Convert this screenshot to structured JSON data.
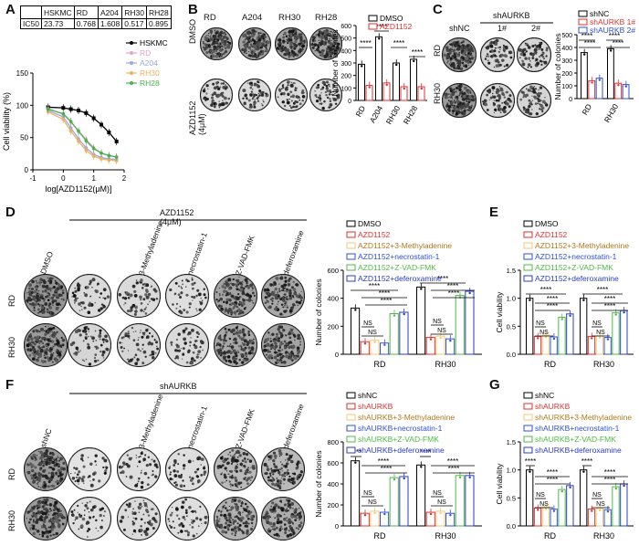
{
  "panels": [
    "A",
    "B",
    "C",
    "D",
    "E",
    "F",
    "G"
  ],
  "colors": {
    "hskmc": "#000000",
    "rd": "#e8a0c8",
    "a204": "#9aa8e0",
    "rh30": "#f0b060",
    "rh28": "#4caf50",
    "ctrl": "#000000",
    "red": "#e03030",
    "beige": "#f2c870",
    "blue": "#3050d8",
    "green": "#50b848",
    "indigo": "#2a3cc8"
  },
  "panelA": {
    "table": {
      "headers": [
        "",
        "HSKMC",
        "RD",
        "A204",
        "RH30",
        "RH28"
      ],
      "row_label": "IC50",
      "values": [
        "23.73",
        "0.768",
        "1.608",
        "0.517",
        "0.895"
      ]
    },
    "chart_data": {
      "type": "line",
      "xlabel": "log[AZD1152(μM)]",
      "ylabel": "Cell viability (%)",
      "xlim": [
        -1,
        2
      ],
      "ylim": [
        0,
        150
      ],
      "xticks": [
        "-1",
        "0",
        "1",
        "2"
      ],
      "yticks": [
        "0",
        "50",
        "100",
        "150"
      ],
      "series": [
        {
          "name": "HSKMC",
          "x": [
            -0.5,
            0,
            0.25,
            0.5,
            0.75,
            1,
            1.25,
            1.5,
            1.75
          ],
          "y": [
            97,
            96,
            94,
            92,
            88,
            80,
            70,
            58,
            44
          ]
        },
        {
          "name": "RD",
          "x": [
            -0.5,
            0,
            0.25,
            0.5,
            0.75,
            1,
            1.25,
            1.5,
            1.75
          ],
          "y": [
            95,
            86,
            74,
            60,
            47,
            34,
            26,
            22,
            20
          ]
        },
        {
          "name": "A204",
          "x": [
            -0.5,
            0,
            0.25,
            0.5,
            0.75,
            1,
            1.25,
            1.5,
            1.75
          ],
          "y": [
            92,
            82,
            65,
            48,
            34,
            24,
            19,
            17,
            16
          ]
        },
        {
          "name": "RH30",
          "x": [
            -0.5,
            0,
            0.25,
            0.5,
            0.75,
            1,
            1.25,
            1.5,
            1.75
          ],
          "y": [
            90,
            78,
            60,
            44,
            30,
            21,
            17,
            15,
            14
          ]
        },
        {
          "name": "RH28",
          "x": [
            -0.5,
            0,
            0.25,
            0.5,
            0.75,
            1,
            1.25,
            1.5,
            1.75
          ],
          "y": [
            94,
            87,
            75,
            60,
            45,
            33,
            26,
            22,
            20
          ]
        }
      ]
    }
  },
  "panelB": {
    "col_labels": [
      "RD",
      "A204",
      "RH30",
      "RH28"
    ],
    "row_labels": [
      "DMSO",
      "AZD1152 (4μM)"
    ],
    "chart_data": {
      "type": "bar",
      "ylabel": "Number of colonies",
      "yticks": [
        "0",
        "100",
        "200",
        "300",
        "400",
        "500",
        "600"
      ],
      "ylim": [
        0,
        600
      ],
      "categories": [
        "RD",
        "A204",
        "RH30",
        "RH28"
      ],
      "series": [
        {
          "name": "DMSO",
          "values": [
            290,
            510,
            300,
            330
          ]
        },
        {
          "name": "AZD1152",
          "values": [
            120,
            140,
            110,
            110
          ]
        }
      ],
      "significance": [
        "****",
        "****",
        "****",
        "****"
      ]
    }
  },
  "panelC": {
    "col_labels": [
      "shNC",
      "1#",
      "2#"
    ],
    "group_label": "shAURKB",
    "row_labels": [
      "RD",
      "RH30"
    ],
    "chart_data": {
      "type": "bar",
      "ylabel": "Number of colonies",
      "yticks": [
        "0",
        "100",
        "200",
        "300",
        "400",
        "500"
      ],
      "ylim": [
        0,
        500
      ],
      "categories": [
        "RD",
        "RH30"
      ],
      "series": [
        {
          "name": "shNC",
          "values": [
            360,
            390
          ]
        },
        {
          "name": "shAURKB 1#",
          "values": [
            140,
            120
          ]
        },
        {
          "name": "shAURKB 2#",
          "values": [
            160,
            110
          ]
        }
      ],
      "significance": [
        "****",
        "****",
        "****",
        "****"
      ]
    }
  },
  "panelD": {
    "group_label": "AZD1152 (4μM)",
    "col_labels": [
      "DMSO",
      "-",
      "+3-Methyladenine",
      "+necrostatin-1",
      "+Z-VAD-FMK",
      "+deferoxamine"
    ],
    "row_labels": [
      "RD",
      "RH30"
    ],
    "chart_data": {
      "type": "bar",
      "ylabel": "Number of colonies",
      "yticks": [
        "0",
        "200",
        "400",
        "600"
      ],
      "ylim": [
        0,
        600
      ],
      "categories": [
        "RD",
        "RH30"
      ],
      "series": [
        {
          "name": "DMSO",
          "values": [
            330,
            480
          ]
        },
        {
          "name": "AZD1152",
          "values": [
            90,
            120
          ]
        },
        {
          "name": "AZD1152+3-Methyladenine",
          "values": [
            100,
            130
          ]
        },
        {
          "name": "AZD1152+necrostatin-1",
          "values": [
            80,
            110
          ]
        },
        {
          "name": "AZD1152+Z-VAD-FMK",
          "values": [
            290,
            420
          ]
        },
        {
          "name": "AZD1152+deferoxamine",
          "values": [
            300,
            450
          ]
        }
      ],
      "annotations": [
        "****",
        "****",
        "****",
        "NS",
        "NS",
        "****",
        "****",
        "****",
        "NS",
        "NS"
      ]
    }
  },
  "panelE": {
    "chart_data": {
      "type": "bar",
      "ylabel": "Cell viability",
      "yticks": [
        "0.0",
        "0.5",
        "1.0",
        "1.5"
      ],
      "ylim": [
        0,
        1.5
      ],
      "categories": [
        "RD",
        "RH30"
      ],
      "series": [
        {
          "name": "DMSO",
          "values": [
            1.0,
            1.0
          ]
        },
        {
          "name": "AZD1152",
          "values": [
            0.32,
            0.32
          ]
        },
        {
          "name": "AZD1152+3-Methyladenine",
          "values": [
            0.34,
            0.33
          ]
        },
        {
          "name": "AZD1152+necrostatin-1",
          "values": [
            0.31,
            0.3
          ]
        },
        {
          "name": "AZD1152+Z-VAD-FMK",
          "values": [
            0.66,
            0.74
          ]
        },
        {
          "name": "AZD1152+deferoxamine",
          "values": [
            0.72,
            0.78
          ]
        }
      ],
      "annotations": [
        "****",
        "****",
        "****",
        "NS",
        "NS",
        "****",
        "****",
        "****",
        "NS",
        "NS"
      ]
    }
  },
  "panelF": {
    "group_label": "shAURKB",
    "col_labels": [
      "shNC",
      "-",
      "+3-Methyladenine",
      "+necrostatin-1",
      "+Z-VAD-FMK",
      "+deferoxamine"
    ],
    "row_labels": [
      "RD",
      "RH30"
    ],
    "chart_data": {
      "type": "bar",
      "ylabel": "Number of colonies",
      "yticks": [
        "0",
        "200",
        "400",
        "600",
        "800"
      ],
      "ylim": [
        0,
        800
      ],
      "categories": [
        "RD",
        "RH30"
      ],
      "series": [
        {
          "name": "shNC",
          "values": [
            620,
            580
          ]
        },
        {
          "name": "shAURKB",
          "values": [
            120,
            130
          ]
        },
        {
          "name": "shAURKB+3-Methyladenine",
          "values": [
            140,
            140
          ]
        },
        {
          "name": "shAURKB+necrostatin-1",
          "values": [
            130,
            120
          ]
        },
        {
          "name": "shAURKB+Z-VAD-FMK",
          "values": [
            460,
            480
          ]
        },
        {
          "name": "shAURKB+deferoxamine",
          "values": [
            470,
            480
          ]
        }
      ],
      "annotations": [
        "****",
        "****",
        "****",
        "NS",
        "NS",
        "****",
        "****",
        "****",
        "NS",
        "NS"
      ]
    }
  },
  "panelG": {
    "chart_data": {
      "type": "bar",
      "ylabel": "Cell viability",
      "yticks": [
        "0.0",
        "0.5",
        "1.0",
        "1.5"
      ],
      "ylim": [
        0,
        1.5
      ],
      "categories": [
        "RD",
        "RH30"
      ],
      "series": [
        {
          "name": "shNC",
          "values": [
            1.0,
            1.0
          ]
        },
        {
          "name": "shAURKB",
          "values": [
            0.32,
            0.3
          ]
        },
        {
          "name": "shAURKB+3-Methyladenine",
          "values": [
            0.34,
            0.31
          ]
        },
        {
          "name": "shAURKB+necrostatin-1",
          "values": [
            0.3,
            0.29
          ]
        },
        {
          "name": "shAURKB+Z-VAD-FMK",
          "values": [
            0.65,
            0.7
          ]
        },
        {
          "name": "shAURKB+deferoxamine",
          "values": [
            0.72,
            0.75
          ]
        }
      ],
      "annotations": [
        "****",
        "****",
        "****",
        "NS",
        "NS",
        "****",
        "****",
        "****",
        "NS",
        "NS"
      ]
    }
  }
}
